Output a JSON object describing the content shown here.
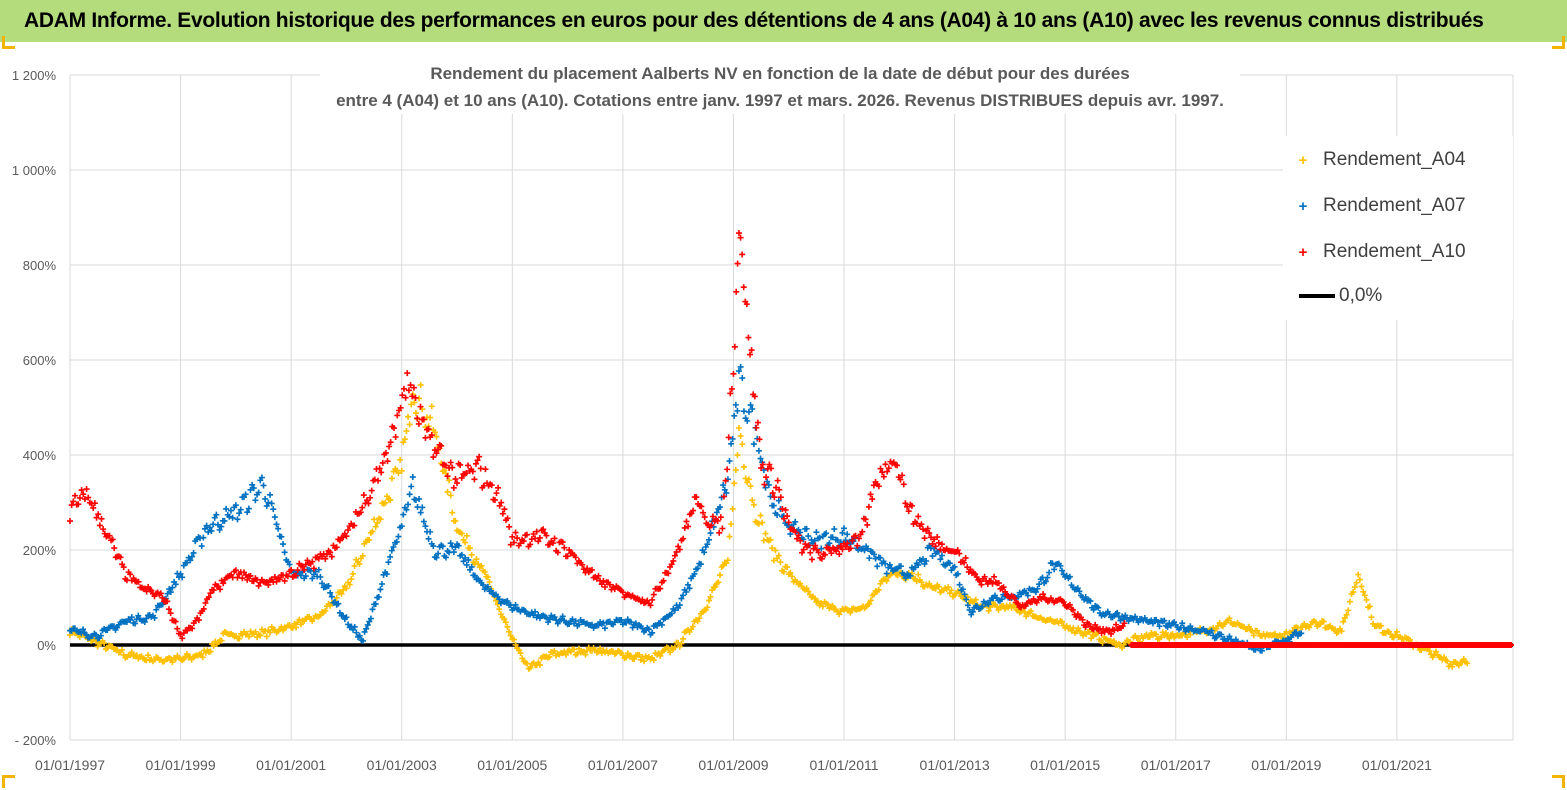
{
  "banner": {
    "title": "ADAM Informe. Evolution historique des performances en euros pour des détentions de 4 ans (A04) à 10 ans (A10) avec les revenus connus distribués"
  },
  "colors": {
    "banner_bg": "#b4dc7d",
    "A04": "#ffc000",
    "A07": "#0070c0",
    "A10": "#ff0000",
    "zero_line": "#000000",
    "grid": "#d9d9d9"
  },
  "chart_data": {
    "type": "scatter",
    "title_line1": "Rendement du placement Aalberts NV en fonction de la date de début pour des durées",
    "title_line2": "entre 4 (A04) et 10 ans (A10). Cotations entre janv. 1997 et mars. 2026. Revenus DISTRIBUES depuis avr. 1997.",
    "y_ticks": [
      "1 200%",
      "1 000%",
      "800%",
      "600%",
      "400%",
      "200%",
      "0%",
      "- 200%"
    ],
    "y_tick_values": [
      1200,
      1000,
      800,
      600,
      400,
      200,
      0,
      -200
    ],
    "ylim": [
      -200,
      1200
    ],
    "x_ticks": [
      "01/01/1997",
      "01/01/1999",
      "01/01/2001",
      "01/01/2003",
      "01/01/2005",
      "01/01/2007",
      "01/01/2009",
      "01/01/2011",
      "01/01/2013",
      "01/01/2015",
      "01/01/2017",
      "01/01/2019",
      "01/01/2021"
    ],
    "x_tick_years": [
      1997,
      1999,
      2001,
      2003,
      2005,
      2007,
      2009,
      2011,
      2013,
      2015,
      2017,
      2019,
      2021
    ],
    "xlim": [
      1997.0,
      2023.1
    ],
    "grid": true,
    "legend_position": "top-right",
    "marker": "+",
    "series": [
      {
        "name": "Rendement_A04",
        "x": [
          1997.0,
          1997.5,
          1998.0,
          1998.5,
          1999.0,
          1999.4,
          1999.8,
          2000.5,
          2001.0,
          2001.5,
          2002.0,
          2002.5,
          2003.0,
          2003.2,
          2003.6,
          2004.0,
          2004.5,
          2005.0,
          2005.3,
          2005.7,
          2006.0,
          2006.5,
          2007.0,
          2007.5,
          2008.0,
          2008.5,
          2008.9,
          2009.1,
          2009.4,
          2009.7,
          2010.0,
          2010.5,
          2011.0,
          2011.4,
          2011.8,
          2012.2,
          2012.6,
          2013.0,
          2013.5,
          2014.0,
          2014.5,
          2015.0,
          2015.5,
          2016.0,
          2016.5,
          2017.0,
          2017.5,
          2018.0,
          2018.5,
          2019.0,
          2019.5,
          2020.0,
          2020.3,
          2020.6,
          2021.0,
          2021.5,
          2022.0,
          2022.3
        ],
        "y": [
          30,
          5,
          -20,
          -30,
          -30,
          -20,
          20,
          25,
          40,
          60,
          120,
          250,
          380,
          540,
          450,
          250,
          150,
          10,
          -50,
          -20,
          -15,
          -10,
          -20,
          -30,
          0,
          80,
          180,
          450,
          280,
          200,
          150,
          90,
          70,
          80,
          150,
          150,
          120,
          110,
          80,
          80,
          60,
          40,
          20,
          0,
          20,
          20,
          30,
          50,
          20,
          20,
          50,
          30,
          150,
          40,
          20,
          -10,
          -40,
          -30
        ]
      },
      {
        "name": "Rendement_A07",
        "x": [
          1997.0,
          1997.5,
          1998.0,
          1998.5,
          1999.0,
          1999.5,
          2000.0,
          2000.5,
          2001.0,
          2001.5,
          2002.0,
          2002.3,
          2002.7,
          2003.0,
          2003.2,
          2003.6,
          2004.0,
          2004.5,
          2005.0,
          2005.5,
          2006.0,
          2006.5,
          2007.0,
          2007.5,
          2008.0,
          2008.5,
          2008.9,
          2009.1,
          2009.4,
          2009.7,
          2010.0,
          2010.5,
          2011.0,
          2011.4,
          2011.8,
          2012.2,
          2012.6,
          2013.0,
          2013.3,
          2013.7,
          2014.0,
          2014.5,
          2014.8,
          2015.2,
          2015.6,
          2016.0,
          2016.5,
          2017.0,
          2017.5,
          2018.0,
          2018.5,
          2019.0,
          2019.3
        ],
        "y": [
          30,
          20,
          50,
          60,
          150,
          250,
          280,
          340,
          150,
          150,
          50,
          10,
          150,
          250,
          330,
          200,
          200,
          120,
          80,
          60,
          50,
          40,
          50,
          30,
          80,
          200,
          350,
          550,
          450,
          300,
          250,
          220,
          230,
          200,
          160,
          150,
          200,
          160,
          70,
          100,
          100,
          120,
          170,
          120,
          70,
          60,
          50,
          40,
          30,
          10,
          -10,
          10,
          30
        ]
      },
      {
        "name": "Rendement_A10",
        "x": [
          1997.0,
          1997.3,
          1997.6,
          1998.0,
          1998.3,
          1998.7,
          1999.0,
          1999.3,
          1999.6,
          2000.0,
          2000.5,
          2001.0,
          2001.5,
          2002.0,
          2002.4,
          2002.8,
          2003.1,
          2003.4,
          2003.8,
          2004.0,
          2004.4,
          2004.8,
          2005.0,
          2005.5,
          2006.0,
          2006.5,
          2007.0,
          2007.5,
          2008.0,
          2008.3,
          2008.6,
          2008.8,
          2009.0,
          2009.1,
          2009.3,
          2009.5,
          2009.8,
          2010.0,
          2010.3,
          2010.6,
          2011.0,
          2011.3,
          2011.6,
          2011.9,
          2012.2,
          2012.6,
          2013.0,
          2013.4,
          2013.8,
          2014.2,
          2014.6,
          2015.0,
          2015.4,
          2015.8,
          2016.1
        ],
        "y": [
          280,
          320,
          250,
          150,
          120,
          100,
          20,
          50,
          120,
          150,
          130,
          150,
          180,
          230,
          320,
          420,
          560,
          450,
          380,
          350,
          370,
          300,
          220,
          230,
          200,
          140,
          110,
          90,
          200,
          300,
          260,
          250,
          600,
          900,
          620,
          380,
          330,
          250,
          200,
          190,
          210,
          220,
          350,
          400,
          280,
          220,
          200,
          140,
          130,
          80,
          100,
          90,
          40,
          30,
          40
        ]
      },
      {
        "name": "Rendement_A10",
        "x": [
          2016.2,
          2023.1
        ],
        "y": [
          0,
          0
        ]
      }
    ],
    "legend": [
      "Rendement_A04",
      "Rendement_A07",
      "Rendement_A10",
      "0,0%"
    ],
    "reference_line": {
      "label": "0,0%",
      "y": 0
    }
  }
}
